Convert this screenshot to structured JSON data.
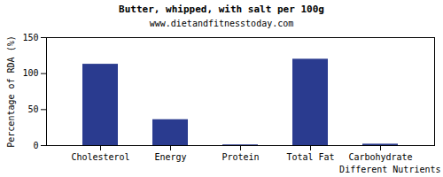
{
  "chart_data": {
    "type": "bar",
    "title": "Butter, whipped, with salt per 100g",
    "subtitle": "www.dietandfitnesstoday.com",
    "x_label": "Different Nutrients",
    "y_label": "Percentage of RDA (%)",
    "categories": [
      "Cholesterol",
      "Energy",
      "Protein",
      "Total Fat",
      "Carbohydrate"
    ],
    "values": [
      113,
      36,
      1,
      120,
      2
    ],
    "color": "#2a3b8f",
    "ylim": [
      0,
      150
    ],
    "yticks": [
      0,
      50,
      100,
      150
    ],
    "grid": false
  }
}
